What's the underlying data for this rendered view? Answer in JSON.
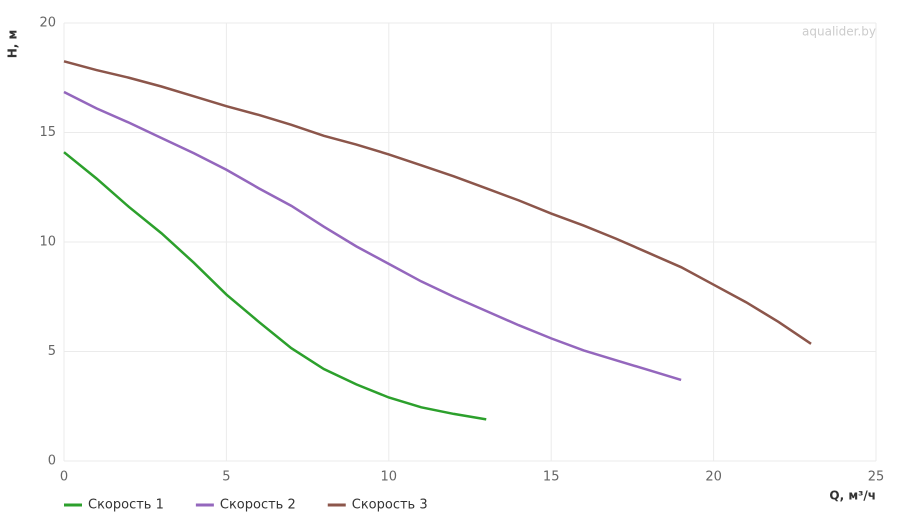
{
  "chart_data": {
    "type": "line",
    "watermark": "aqualider.by",
    "x_label": "Q, м³/ч",
    "y_label": "H, м",
    "xlim": [
      0,
      25
    ],
    "xticks": [
      0,
      5,
      10,
      15,
      20,
      25
    ],
    "ylim": [
      0,
      20
    ],
    "yticks": [
      0,
      5,
      10,
      15,
      20
    ],
    "grid": true,
    "legend": "bottom",
    "series": [
      {
        "name": "Скорость 1",
        "color": "#2ca02c",
        "x": [
          0,
          1,
          2,
          3,
          4,
          5,
          6,
          7,
          8,
          9,
          10,
          11,
          12,
          13
        ],
        "values": [
          14.1,
          12.9,
          11.6,
          10.4,
          9.05,
          7.6,
          6.35,
          5.15,
          4.2,
          3.5,
          2.9,
          2.45,
          2.15,
          1.9
        ]
      },
      {
        "name": "Скорость 2",
        "color": "#9467bd",
        "x": [
          0,
          1,
          2,
          3,
          4,
          5,
          6,
          7,
          8,
          9,
          10,
          11,
          12,
          13,
          14,
          15,
          16,
          17,
          18,
          19
        ],
        "values": [
          16.85,
          16.1,
          15.45,
          14.75,
          14.05,
          13.3,
          12.45,
          11.65,
          10.7,
          9.8,
          9.0,
          8.2,
          7.5,
          6.85,
          6.2,
          5.6,
          5.05,
          4.6,
          4.15,
          3.7
        ]
      },
      {
        "name": "Скорость 3",
        "color": "#8c564b",
        "x": [
          0,
          1,
          2,
          3,
          4,
          5,
          6,
          7,
          8,
          9,
          10,
          11,
          12,
          13,
          14,
          15,
          16,
          17,
          18,
          19,
          20,
          21,
          22,
          23
        ],
        "values": [
          18.25,
          17.85,
          17.5,
          17.1,
          16.65,
          16.2,
          15.8,
          15.35,
          14.85,
          14.45,
          14.0,
          13.5,
          13.0,
          12.45,
          11.9,
          11.3,
          10.75,
          10.15,
          9.5,
          8.85,
          8.05,
          7.25,
          6.35,
          5.35
        ]
      }
    ]
  }
}
